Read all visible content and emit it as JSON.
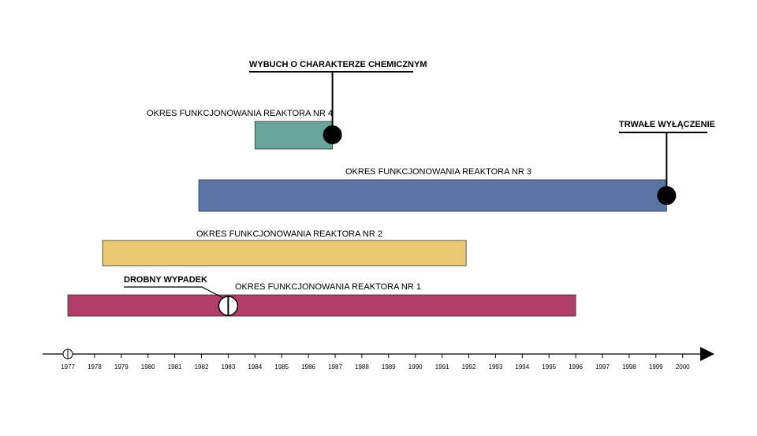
{
  "timeline": {
    "years": [
      "1977",
      "1978",
      "1979",
      "1980",
      "1981",
      "1982",
      "1983",
      "1984",
      "1985",
      "1986",
      "1987",
      "1988",
      "1989",
      "1990",
      "1991",
      "1992",
      "1993",
      "1994",
      "1995",
      "1996",
      "1997",
      "1998",
      "1999",
      "2000"
    ]
  },
  "bars": [
    {
      "id": "reactor-4",
      "label": "OKRES FUNKCJONOWANIA REAKTORA NR 4",
      "start": 1984.0,
      "end": 1986.9,
      "color": "#6aa59c"
    },
    {
      "id": "reactor-3",
      "label": "OKRES FUNKCJONOWANIA REAKTORA NR 3",
      "start": 1981.9,
      "end": 1999.4,
      "color": "#5b74a6"
    },
    {
      "id": "reactor-2",
      "label": "OKRES FUNKCJONOWANIA REAKTORA NR 2",
      "start": 1978.3,
      "end": 1991.9,
      "color": "#ebc872"
    },
    {
      "id": "reactor-1",
      "label": "OKRES FUNKCJONOWANIA REAKTORA NR 1",
      "start": 1977.0,
      "end": 1996.0,
      "color": "#b03e67"
    }
  ],
  "events": {
    "explosion": {
      "label": "WYBUCH O CHARAKTERZE CHEMICZNYM",
      "year": 1986.9
    },
    "shutdown": {
      "label": "TRWAŁE WYŁĄCZENIE",
      "year": 1999.4
    },
    "minor_accident": {
      "label": "DROBNY WYPADEK",
      "year": 1983.0
    }
  }
}
